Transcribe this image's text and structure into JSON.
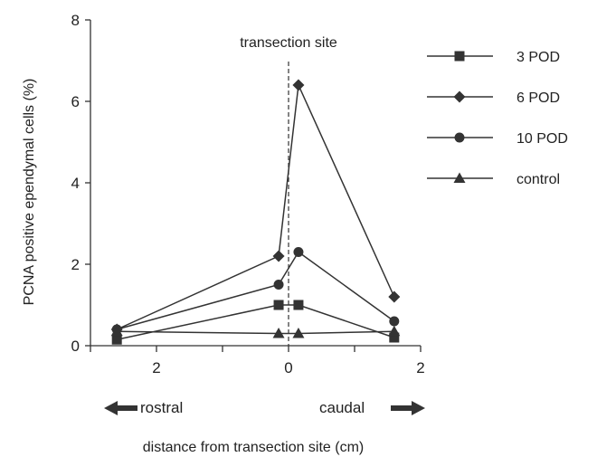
{
  "chart_data": {
    "type": "line",
    "title": "",
    "xlabel": "distance from transection site (cm)",
    "ylabel": "PCNA positive ependymal cells  (%)",
    "x": [
      -2.6,
      -0.15,
      0.15,
      1.6
    ],
    "x_tick_labels": [
      {
        "x": -2,
        "label": "2"
      },
      {
        "x": 0,
        "label": "0"
      },
      {
        "x": 2,
        "label": "2"
      }
    ],
    "y_ticks": [
      0,
      2,
      4,
      6,
      8
    ],
    "xlim": [
      -3,
      2
    ],
    "ylim": [
      0,
      8
    ],
    "series": [
      {
        "name": "3 POD",
        "marker": "square",
        "values": [
          0.15,
          1.0,
          1.0,
          0.2
        ]
      },
      {
        "name": "6 POD",
        "marker": "diamond",
        "values": [
          0.4,
          2.2,
          6.4,
          1.2
        ]
      },
      {
        "name": "10 POD",
        "marker": "circle",
        "values": [
          0.4,
          1.5,
          2.3,
          0.6
        ]
      },
      {
        "name": "control",
        "marker": "triangle",
        "values": [
          0.35,
          0.3,
          0.3,
          0.35
        ]
      }
    ],
    "annotations": {
      "transection_label": "transection site",
      "transection_x": 0,
      "left_direction": "rostral",
      "right_direction": "caudal"
    },
    "legend_position": "top-right",
    "grid": false
  }
}
